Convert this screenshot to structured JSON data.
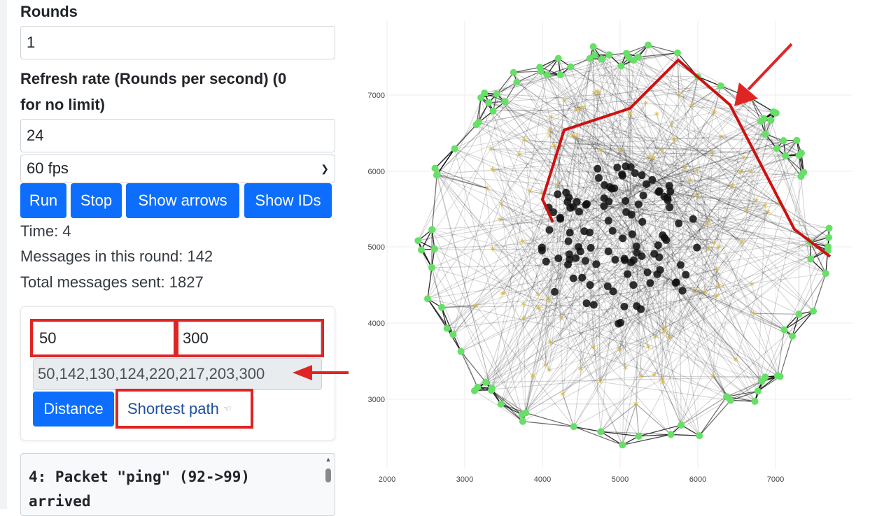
{
  "controls": {
    "rounds_label": "Rounds",
    "rounds_value": "1",
    "refresh_label_line1": "Refresh rate (Rounds per second) (0",
    "refresh_label_line2": "for no limit)",
    "refresh_value": "24",
    "fps_selected": "60 fps",
    "buttons": {
      "run": "Run",
      "stop": "Stop",
      "show_arrows": "Show arrows",
      "show_ids": "Show IDs"
    }
  },
  "stats": {
    "time": "Time: 4",
    "messages_round": "Messages in this round: 142",
    "total_messages": "Total messages sent: 1827"
  },
  "path_card": {
    "source_value": "50",
    "target_value": "300",
    "path_result": "50,142,130,124,220,217,203,300",
    "distance_button": "Distance",
    "shortest_path_button": "Shortest path"
  },
  "log": {
    "line1": "4: Packet \"ping\" (92->99)",
    "line2": "arrived"
  },
  "graph": {
    "x_ticks": [
      "2000",
      "3000",
      "4000",
      "5000",
      "6000",
      "7000"
    ],
    "y_ticks": [
      "7000",
      "6000",
      "5000",
      "4000",
      "3000"
    ],
    "highlighted_path_color": "#cc1111",
    "annotation_color": "#e02424",
    "outer_node_color": "#66e066",
    "middle_node_color": "#d8b84a",
    "inner_node_color": "#111111"
  }
}
